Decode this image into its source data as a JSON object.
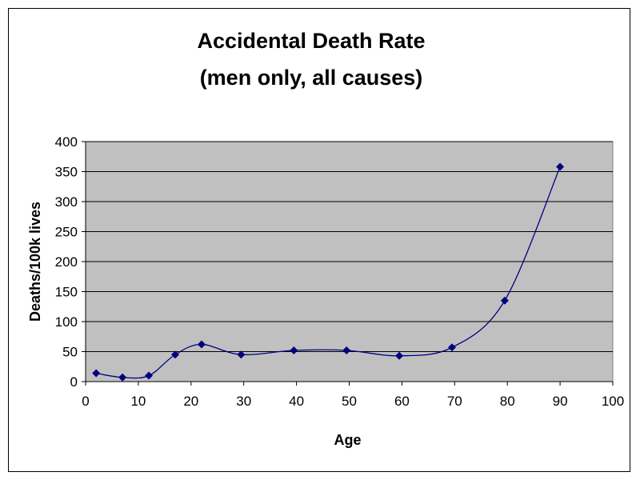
{
  "chart_data": {
    "type": "scatter",
    "title": "Accidental Death Rate",
    "subtitle": "(men only, all causes)",
    "xlabel": "Age",
    "ylabel": "Deaths/100k lives",
    "xlim": [
      0,
      100
    ],
    "ylim": [
      0,
      400
    ],
    "xticks": [
      0,
      10,
      20,
      30,
      40,
      50,
      60,
      70,
      80,
      90,
      100
    ],
    "yticks": [
      0,
      50,
      100,
      150,
      200,
      250,
      300,
      350,
      400
    ],
    "grid": "horizontal",
    "smooth_line": true,
    "colors": {
      "plot_background": "#c0c0c0",
      "series": "#000080",
      "gridline": "#000000"
    },
    "series": [
      {
        "x": [
          2,
          7,
          12,
          17,
          22,
          29.5,
          39.5,
          49.5,
          59.5,
          69.5,
          79.5,
          90
        ],
        "y": [
          14,
          7,
          10,
          45,
          62,
          45,
          52,
          52,
          43,
          57,
          135,
          358
        ]
      }
    ]
  }
}
